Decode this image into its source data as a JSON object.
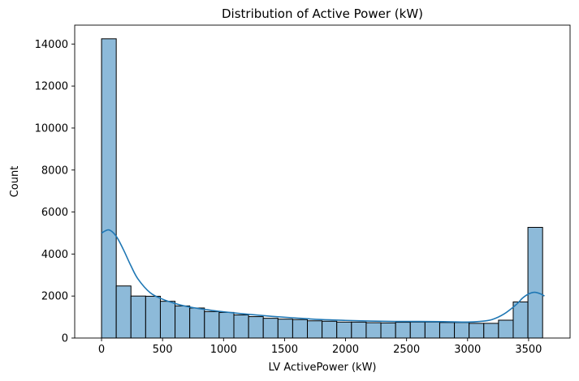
{
  "chart_data": {
    "type": "bar",
    "title": "Distribution of Active Power (kW)",
    "xlabel": "LV ActivePower (kW)",
    "ylabel": "Count",
    "xlim": [
      -220,
      3840
    ],
    "ylim": [
      0,
      14900
    ],
    "xticks": [
      0,
      500,
      1000,
      1500,
      2000,
      2500,
      3000,
      3500
    ],
    "yticks": [
      0,
      2000,
      4000,
      6000,
      8000,
      10000,
      12000,
      14000
    ],
    "bin_width": 120.5,
    "bin_start": 0,
    "values": [
      14250,
      2480,
      2000,
      1990,
      1750,
      1530,
      1430,
      1260,
      1220,
      1100,
      1020,
      940,
      900,
      880,
      820,
      800,
      760,
      760,
      730,
      720,
      750,
      760,
      760,
      740,
      740,
      700,
      700,
      850,
      1720,
      5270
    ],
    "kde_x": [
      0,
      60,
      120,
      180,
      240,
      300,
      400,
      500,
      600,
      700,
      800,
      900,
      1000,
      1200,
      1400,
      1600,
      1800,
      2000,
      2200,
      2400,
      2600,
      2800,
      3000,
      3100,
      3200,
      3300,
      3400,
      3450,
      3500,
      3550,
      3600,
      3630
    ],
    "kde_y": [
      5000,
      5150,
      4850,
      4200,
      3450,
      2800,
      2150,
      1850,
      1650,
      1500,
      1400,
      1320,
      1250,
      1130,
      1030,
      950,
      880,
      840,
      810,
      790,
      790,
      780,
      760,
      790,
      880,
      1150,
      1600,
      1900,
      2100,
      2180,
      2100,
      2000
    ],
    "grid": false,
    "bar_color": "#8dbad9",
    "bar_edge_color": "#000000",
    "kde_color": "#1f77b4"
  }
}
